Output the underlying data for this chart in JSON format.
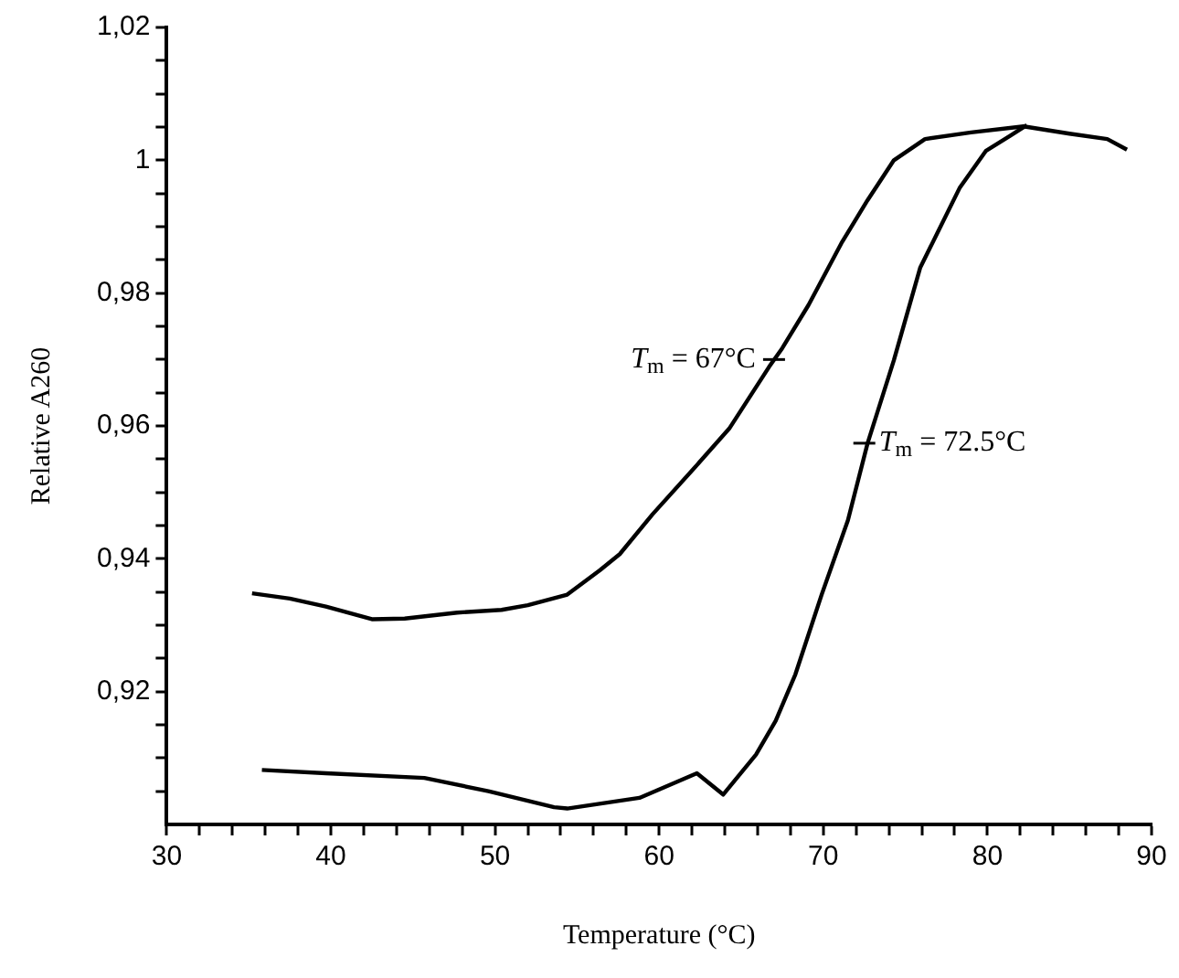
{
  "chart_data": {
    "type": "line",
    "xlabel": "Temperature (°C)",
    "ylabel": "Relative A260",
    "xlim": [
      30,
      90
    ],
    "ylim": [
      0.9,
      1.02
    ],
    "xticks": [
      30,
      {
        "value": 32,
        "label": null
      },
      {
        "value": 34,
        "label": null
      },
      {
        "value": 36,
        "label": null
      },
      {
        "value": 38,
        "label": null
      },
      40,
      {
        "value": 42,
        "label": null
      },
      {
        "value": 44,
        "label": null
      },
      {
        "value": 46,
        "label": null
      },
      {
        "value": 48,
        "label": null
      },
      50,
      {
        "value": 52,
        "label": null
      },
      {
        "value": 54,
        "label": null
      },
      {
        "value": 56,
        "label": null
      },
      {
        "value": 58,
        "label": null
      },
      60,
      {
        "value": 62,
        "label": null
      },
      {
        "value": 64,
        "label": null
      },
      {
        "value": 66,
        "label": null
      },
      {
        "value": 68,
        "label": null
      },
      70,
      {
        "value": 72,
        "label": null
      },
      {
        "value": 74,
        "label": null
      },
      {
        "value": 76,
        "label": null
      },
      {
        "value": 78,
        "label": null
      },
      80,
      {
        "value": 82,
        "label": null
      },
      {
        "value": 84,
        "label": null
      },
      {
        "value": 86,
        "label": null
      },
      {
        "value": 88,
        "label": null
      },
      90
    ],
    "yticks": [
      {
        "value": 0.905,
        "label": null
      },
      {
        "value": 0.91,
        "label": null
      },
      {
        "value": 0.915,
        "label": null
      },
      {
        "value": 0.92,
        "label": "0,92"
      },
      {
        "value": 0.925,
        "label": null
      },
      {
        "value": 0.93,
        "label": null
      },
      {
        "value": 0.935,
        "label": null
      },
      {
        "value": 0.94,
        "label": "0,94"
      },
      {
        "value": 0.945,
        "label": null
      },
      {
        "value": 0.95,
        "label": null
      },
      {
        "value": 0.955,
        "label": null
      },
      {
        "value": 0.96,
        "label": "0,96"
      },
      {
        "value": 0.965,
        "label": null
      },
      {
        "value": 0.97,
        "label": null
      },
      {
        "value": 0.975,
        "label": null
      },
      {
        "value": 0.98,
        "label": "0,98"
      },
      {
        "value": 0.985,
        "label": null
      },
      {
        "value": 0.99,
        "label": null
      },
      {
        "value": 0.995,
        "label": null
      },
      1,
      {
        "value": 1.005,
        "label": null
      },
      {
        "value": 1.01,
        "label": null
      },
      {
        "value": 1.015,
        "label": null
      },
      {
        "value": 1.02,
        "label": "1,02"
      }
    ],
    "grid": false,
    "legend": false,
    "marker": "none",
    "line_style": "solid",
    "series": [
      {
        "color": "#000000",
        "x": [
          35.2,
          37.5,
          39.7,
          42.5,
          44.5,
          47.7,
          50.4,
          52,
          54.4,
          56.4,
          57.6,
          59.6,
          62.3,
          64.3,
          66.7,
          67.5,
          69.1,
          71.1,
          72.7,
          74.3,
          76.2,
          79,
          82.2,
          85,
          87.3,
          88.5
        ],
        "values": [
          0.9348,
          0.934,
          0.9328,
          0.9309,
          0.931,
          0.9319,
          0.9323,
          0.933,
          0.9346,
          0.9383,
          0.9407,
          0.9467,
          0.9541,
          0.9597,
          0.9689,
          0.9717,
          0.9782,
          0.9875,
          0.994,
          1.0,
          1.0032,
          1.0042,
          1.0051,
          1.004,
          1.0032,
          1.0016
        ]
      },
      {
        "color": "#000000",
        "x": [
          35.8,
          39.7,
          45.7,
          49.6,
          53.6,
          54.4,
          58.8,
          62.3,
          63.9,
          65.9,
          67.1,
          68.3,
          69.9,
          71.5,
          72.7,
          74.3,
          75.9,
          78.3,
          79.9,
          81.4,
          82.4
        ],
        "values": [
          0.9082,
          0.9077,
          0.907,
          0.905,
          0.9026,
          0.9024,
          0.904,
          0.9077,
          0.9045,
          0.9105,
          0.9156,
          0.9226,
          0.9346,
          0.9458,
          0.9574,
          0.9699,
          0.9838,
          0.9958,
          1.0014,
          1.0037,
          1.0053
        ]
      }
    ],
    "annotations": [
      {
        "text": "T$_{m}$ = 67°C",
        "x": 67,
        "y": 0.97
      },
      {
        "text": "T$_{m}$ = 72.5°C",
        "x": 72.5,
        "y": 0.9574
      }
    ]
  }
}
